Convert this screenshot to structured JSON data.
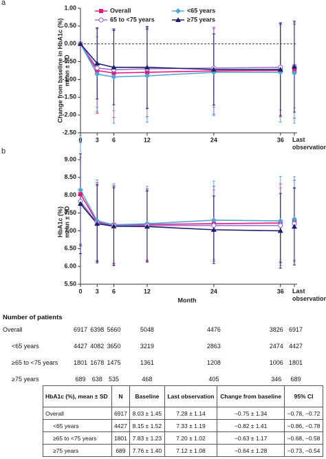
{
  "chart_data": [
    {
      "type": "line",
      "panel_label": "a",
      "ylabel": [
        "Change from baseline in HbA1c (%)",
        "mean ± SD"
      ],
      "x": [
        0,
        3,
        6,
        12,
        24,
        36
      ],
      "last_x": 38.5,
      "xlim": [
        0,
        39
      ],
      "xticks": [
        0,
        3,
        6,
        12,
        24,
        36,
        {
          "value": 38.5,
          "label": "Last observation"
        }
      ],
      "ylim": [
        -2.5,
        1
      ],
      "yticks": [
        {
          "value": 1,
          "label": "1.00"
        },
        {
          "value": 0.5,
          "label": "0.50"
        },
        {
          "value": 0,
          "label": "0.00"
        },
        {
          "value": -0.5,
          "label": "-0.50"
        },
        {
          "value": -1,
          "label": "-1.00"
        },
        {
          "value": -1.5,
          "label": "-1.50"
        },
        {
          "value": -2,
          "label": "-2.00"
        },
        {
          "value": -2.5,
          "label": "-2.50"
        }
      ],
      "hline": 0,
      "legend": "top",
      "series": [
        {
          "name": "Overall",
          "color": "#e3197d",
          "marker": "square",
          "values": [
            0,
            -0.75,
            -0.82,
            -0.8,
            -0.76,
            -0.75
          ],
          "errors": [
            0,
            1.2,
            1.25,
            1.25,
            1.22,
            1.3
          ],
          "last_value": -0.75,
          "last_error": 1.34
        },
        {
          "name": "<65 years",
          "color": "#4ea6d8",
          "marker": "diamond",
          "values": [
            0,
            -0.85,
            -0.93,
            -0.9,
            -0.8,
            -0.8
          ],
          "errors": [
            0,
            1.05,
            1.3,
            1.3,
            1.22,
            1.4
          ],
          "last_value": -0.82,
          "last_error": 1.41
        },
        {
          "name": "65 to <75 years",
          "color": "#a070d0",
          "marker": "circle-open",
          "values": [
            0,
            -0.68,
            -0.73,
            -0.7,
            -0.68,
            -0.66
          ],
          "errors": [
            0,
            1.1,
            1.15,
            1.12,
            1.1,
            1.2
          ],
          "last_value": -0.63,
          "last_error": 1.17
        },
        {
          "name": "≥75 years",
          "color": "#1b1f6b",
          "marker": "triangle",
          "values": [
            0,
            -0.55,
            -0.66,
            -0.66,
            -0.72,
            -0.72
          ],
          "errors": [
            0,
            1.0,
            1.05,
            1.15,
            1.0,
            1.3
          ],
          "last_value": -0.64,
          "last_error": 1.28
        }
      ]
    },
    {
      "type": "line",
      "panel_label": "b",
      "ylabel": [
        "HbA1c (%)",
        "mean ± SD"
      ],
      "xlabel": "Month",
      "x": [
        0,
        3,
        6,
        12,
        24,
        36
      ],
      "last_x": 38.5,
      "xlim": [
        0,
        39
      ],
      "xticks": [
        0,
        3,
        6,
        12,
        24,
        36,
        {
          "value": 38.5,
          "label": "Last observation"
        }
      ],
      "ylim": [
        5.5,
        9
      ],
      "yticks": [
        {
          "value": 9,
          "label": "9.00"
        },
        {
          "value": 8.5,
          "label": "8.50"
        },
        {
          "value": 8,
          "label": "8.00"
        },
        {
          "value": 7.5,
          "label": "7.50"
        },
        {
          "value": 7,
          "label": "7.00"
        },
        {
          "value": 6.5,
          "label": "6.50"
        },
        {
          "value": 6,
          "label": "6.00"
        },
        {
          "value": 5.5,
          "label": "5.50"
        }
      ],
      "series": [
        {
          "name": "Overall",
          "color": "#e3197d",
          "marker": "square",
          "values": [
            8.03,
            7.25,
            7.17,
            7.18,
            7.2,
            7.22
          ],
          "errors": [
            1.45,
            1.1,
            1.1,
            1.0,
            1.05,
            1.1
          ],
          "last_value": 7.28,
          "last_error": 1.14
        },
        {
          "name": "<65 years",
          "color": "#4ea6d8",
          "marker": "diamond",
          "values": [
            8.15,
            7.28,
            7.17,
            7.2,
            7.3,
            7.28
          ],
          "errors": [
            1.52,
            1.15,
            1.15,
            1.05,
            1.1,
            1.25
          ],
          "last_value": 7.33,
          "last_error": 1.19
        },
        {
          "name": "65 to <75 years",
          "color": "#a070d0",
          "marker": "circle-open",
          "values": [
            7.83,
            7.22,
            7.15,
            7.15,
            7.15,
            7.15
          ],
          "errors": [
            1.23,
            1.05,
            1.05,
            1.0,
            1.0,
            1.05
          ],
          "last_value": 7.2,
          "last_error": 1.02
        },
        {
          "name": "≥75 years",
          "color": "#1b1f6b",
          "marker": "triangle",
          "values": [
            7.76,
            7.2,
            7.13,
            7.12,
            7.03,
            7.0
          ],
          "errors": [
            1.4,
            1.1,
            1.1,
            1.0,
            0.95,
            1.05
          ],
          "last_value": 7.12,
          "last_error": 1.08
        }
      ]
    }
  ],
  "patients_table": {
    "title": "Number of patients",
    "rows": [
      {
        "label": "Overall",
        "values": [
          6917,
          6398,
          5660,
          5048,
          4476,
          3826,
          6917
        ]
      },
      {
        "label": "<65 years",
        "values": [
          4427,
          4082,
          3650,
          3219,
          2863,
          2474,
          4427
        ]
      },
      {
        "label": "≥65 to <75 years",
        "values": [
          1801,
          1678,
          1475,
          1361,
          1208,
          1006,
          1801
        ]
      },
      {
        "label": "≥75 years",
        "values": [
          689,
          638,
          535,
          468,
          405,
          346,
          689
        ]
      }
    ]
  },
  "summary_table": {
    "header": [
      "HbA1c (%), mean ± SD",
      "N",
      "Baseline",
      "Last observation",
      "Change from baseline",
      "95% CI"
    ],
    "rows": [
      [
        "Overall",
        "6917",
        "8.03 ± 1.45",
        "7.28 ± 1.14",
        "−0.75 ± 1.34",
        "−0.78, −0.72"
      ],
      [
        "<65 years",
        "4427",
        "8.15 ± 1.52",
        "7.33 ± 1.19",
        "−0.82 ± 1.41",
        "−0.86, −0.78"
      ],
      [
        "≥65 to <75 years",
        "1801",
        "7.83 ± 1.23",
        "7.20 ± 1.02",
        "−0.63 ± 1.17",
        "−0.68, −0.58"
      ],
      [
        "≥75 years",
        "689",
        "7.76 ± 1.40",
        "7.12 ± 1.08",
        "−0.64 ± 1.28",
        "−0.73, −0.54"
      ]
    ]
  }
}
